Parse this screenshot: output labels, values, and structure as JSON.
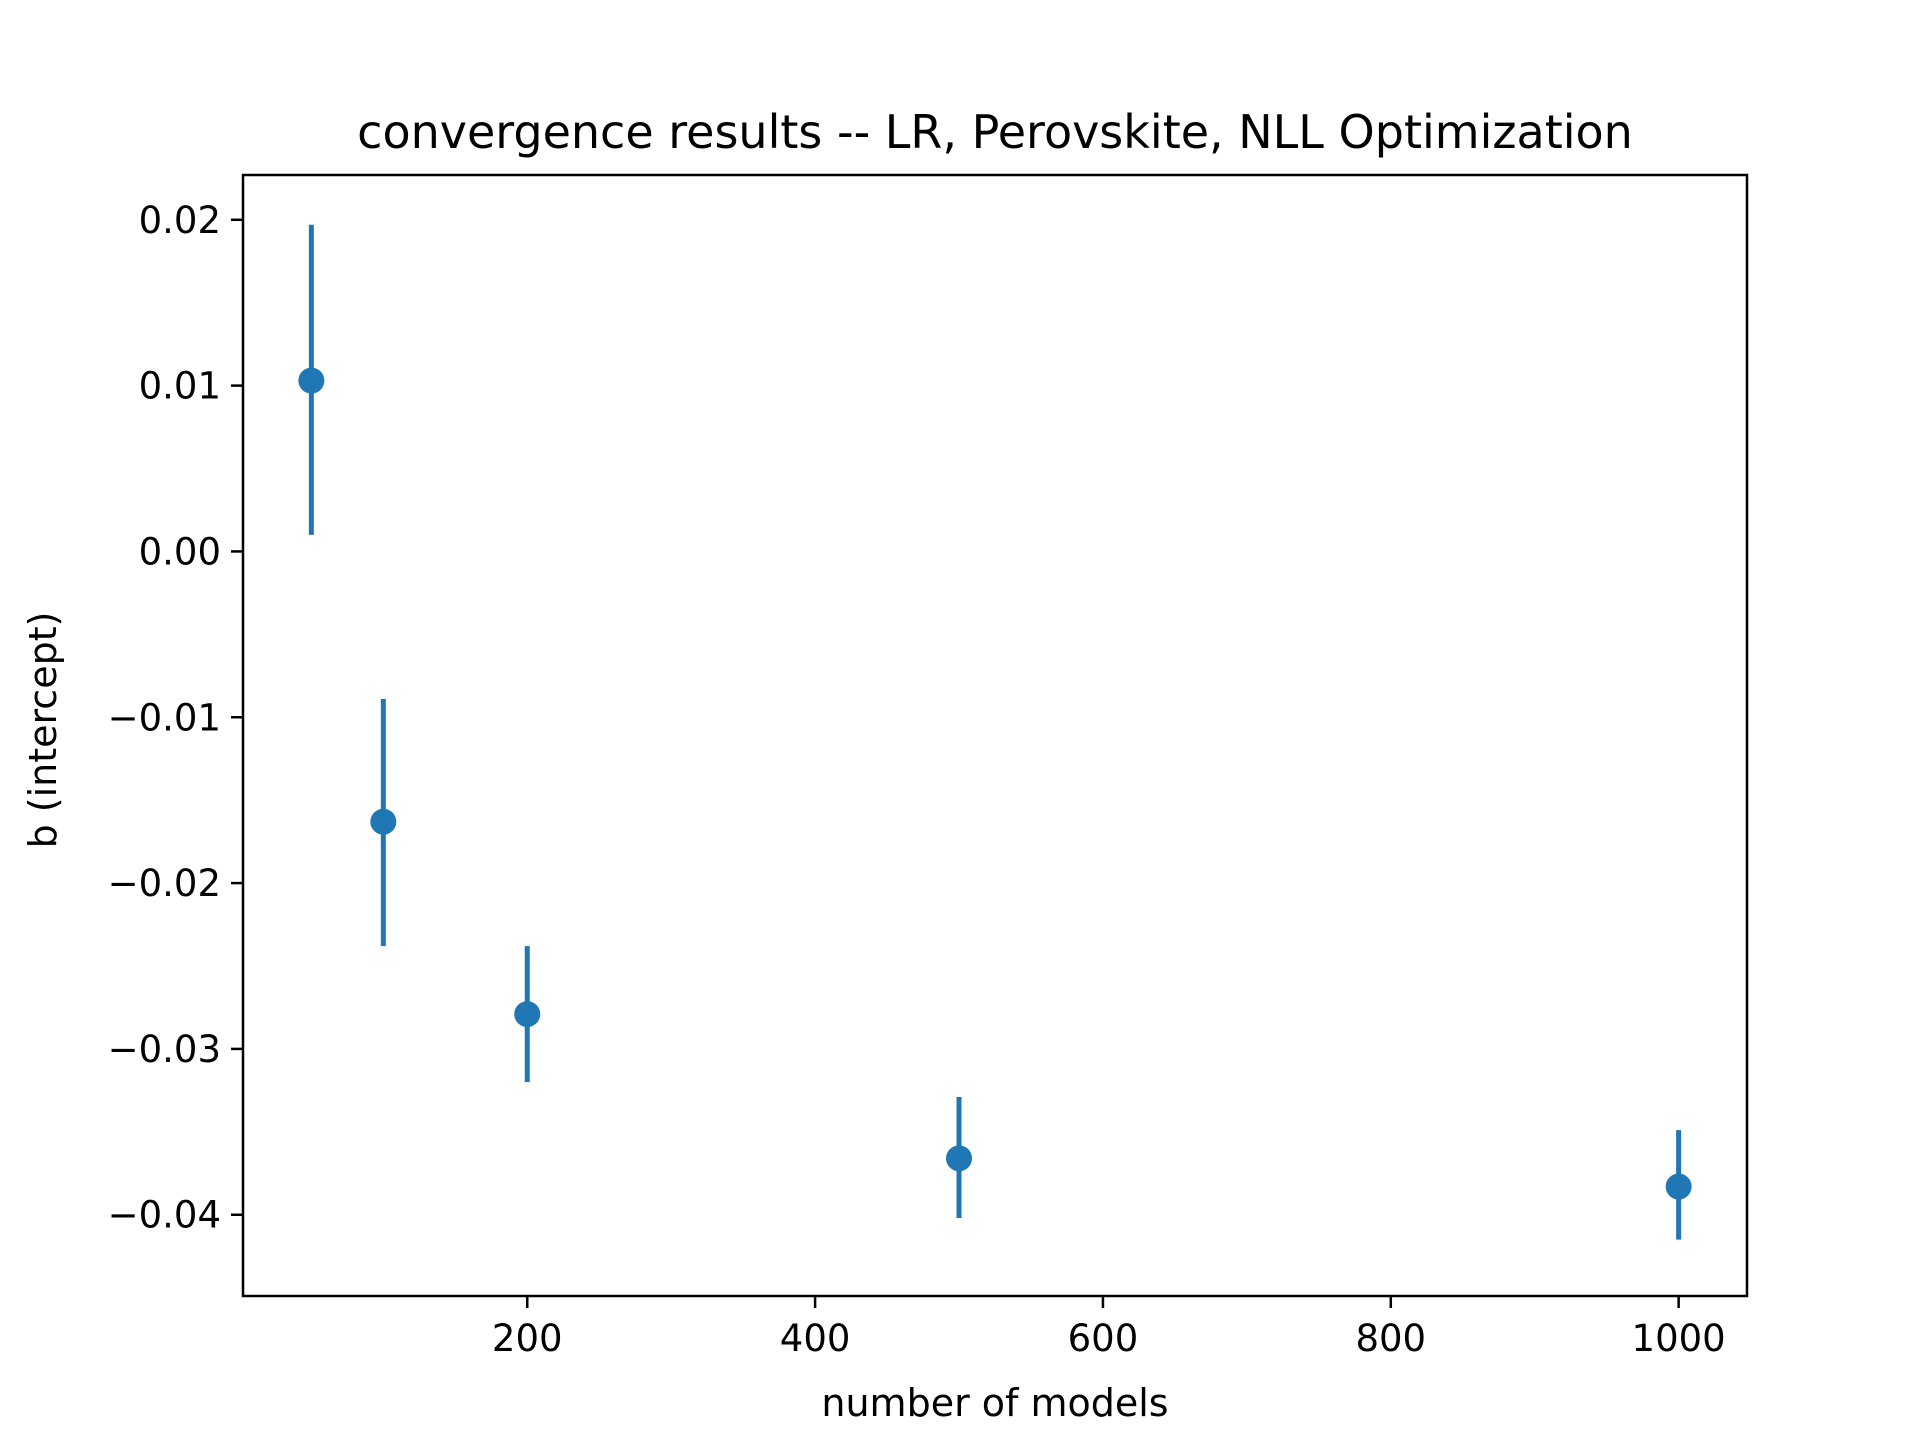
{
  "chart_data": {
    "type": "scatter",
    "title": "convergence results -- LR, Perovskite, NLL Optimization",
    "xlabel": "number of models",
    "ylabel": "b (intercept)",
    "xlim": [
      2.5,
      1047.5
    ],
    "ylim": [
      -0.0449,
      0.0227
    ],
    "x_ticks": [
      200,
      400,
      600,
      800,
      1000
    ],
    "x_tick_labels": [
      "200",
      "400",
      "600",
      "800",
      "1000"
    ],
    "y_ticks": [
      0.02,
      0.01,
      0.0,
      -0.01,
      -0.02,
      -0.03,
      -0.04
    ],
    "y_tick_labels": [
      "0.02",
      "0.01",
      "0.00",
      "−0.01",
      "−0.02",
      "−0.03",
      "−0.04"
    ],
    "grid": false,
    "legend": "none",
    "series": [
      {
        "color": "#1f77b4",
        "points": [
          {
            "x": 50,
            "y": 0.0103,
            "err_low": 0.001,
            "err_high": 0.0197
          },
          {
            "x": 100,
            "y": -0.0163,
            "err_low": -0.0238,
            "err_high": -0.0089
          },
          {
            "x": 200,
            "y": -0.0279,
            "err_low": -0.032,
            "err_high": -0.0238
          },
          {
            "x": 500,
            "y": -0.0366,
            "err_low": -0.0402,
            "err_high": -0.0329
          },
          {
            "x": 1000,
            "y": -0.0383,
            "err_low": -0.0415,
            "err_high": -0.0349
          }
        ]
      }
    ]
  }
}
